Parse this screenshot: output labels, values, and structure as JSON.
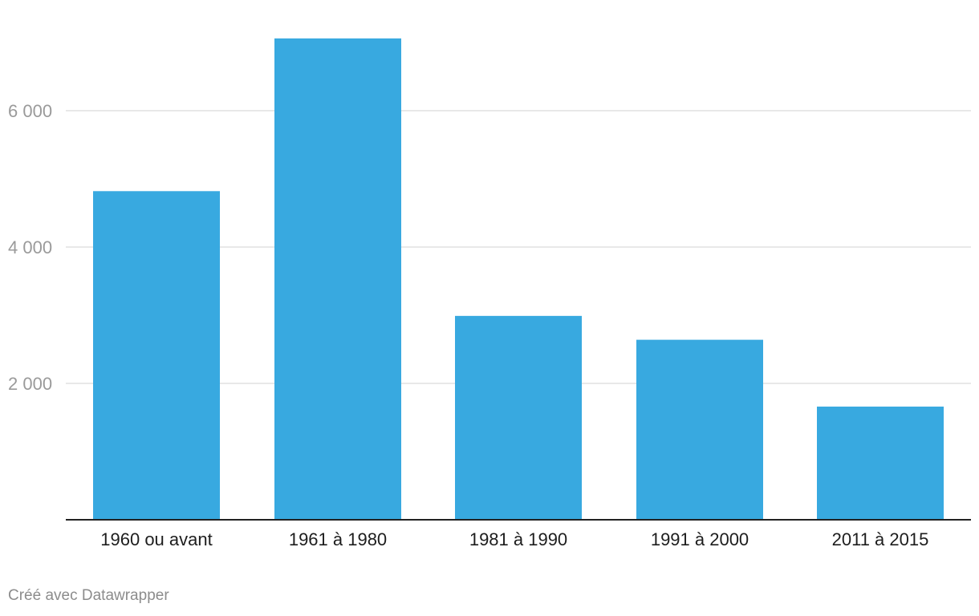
{
  "chart_data": {
    "type": "bar",
    "categories": [
      "1960 ou avant",
      "1961 à 1980",
      "1981 à 1990",
      "1991 à 2000",
      "2011 à 2015"
    ],
    "values": [
      4820,
      7060,
      2990,
      2640,
      1660
    ],
    "ylim": [
      0,
      7500
    ],
    "yticks": [
      2000,
      4000,
      6000
    ],
    "ytick_labels": [
      "2 000",
      "4 000",
      "6 000"
    ],
    "grid": true,
    "bar_color": "#38a9e0",
    "title": "",
    "xlabel": "",
    "ylabel": ""
  },
  "footer": {
    "credit": "Créé avec Datawrapper"
  }
}
